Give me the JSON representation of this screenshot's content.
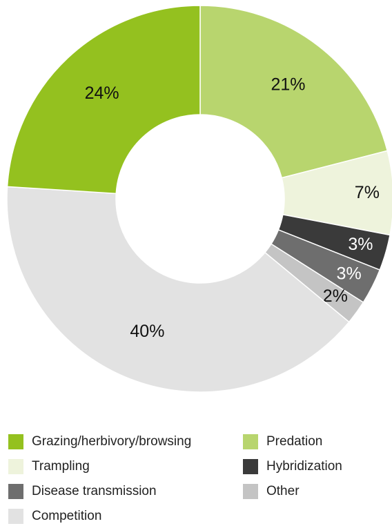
{
  "chart_data": {
    "type": "donut",
    "categories": [
      "Predation",
      "Trampling",
      "Hybridization",
      "Disease transmission",
      "Other",
      "Competition",
      "Grazing/herbivory/browsing"
    ],
    "values": [
      21,
      7,
      3,
      3,
      2,
      40,
      24
    ],
    "value_labels": [
      "21%",
      "7%",
      "3%",
      "3%",
      "2%",
      "40%",
      "24%"
    ],
    "colors": [
      "#b8d56e",
      "#eef3dc",
      "#3a3a3a",
      "#6e6e6e",
      "#c4c4c4",
      "#e2e2e2",
      "#94c11f"
    ]
  }
}
